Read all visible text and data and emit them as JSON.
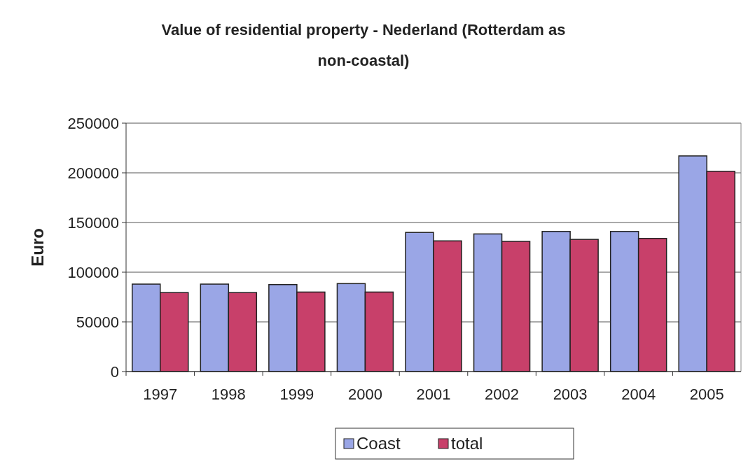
{
  "chart_data": {
    "type": "bar",
    "title": "Value of residential property - Nederland (Rotterdam as non-coastal)",
    "ylabel": "Euro",
    "categories": [
      "1997",
      "1998",
      "1999",
      "2000",
      "2001",
      "2002",
      "2003",
      "2004",
      "2005"
    ],
    "series": [
      {
        "name": "Coast",
        "color": "#9aa6e6",
        "values": [
          88000,
          88000,
          87500,
          88500,
          140000,
          138500,
          141000,
          141000,
          217000
        ]
      },
      {
        "name": "total",
        "color": "#c8406a",
        "values": [
          79500,
          79500,
          80000,
          80000,
          131500,
          131000,
          133000,
          134000,
          201500
        ]
      }
    ],
    "ylim": [
      0,
      250000
    ],
    "yticks": [
      0,
      50000,
      100000,
      150000,
      200000,
      250000
    ],
    "grid": "y",
    "legend": "bottom"
  }
}
